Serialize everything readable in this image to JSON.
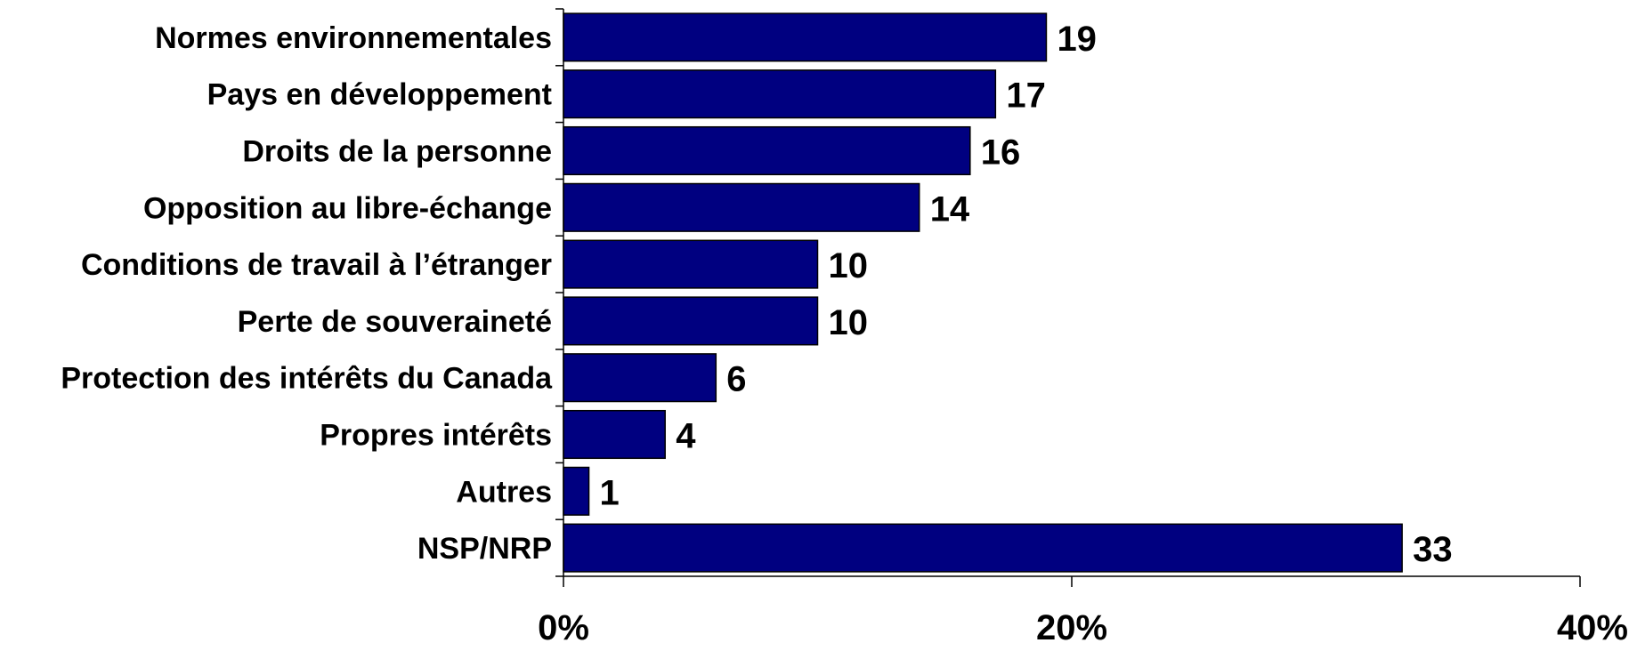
{
  "chart_data": {
    "type": "bar",
    "orientation": "horizontal",
    "categories": [
      "Normes environnementales",
      "Pays en développement",
      "Droits de la personne",
      "Opposition au libre-échange",
      "Conditions de travail à l’étranger",
      "Perte de souveraineté",
      "Protection des intérêts du Canada",
      "Propres intérêts",
      "Autres",
      "NSP/NRP"
    ],
    "values": [
      19,
      17,
      16,
      14,
      10,
      10,
      6,
      4,
      1,
      33
    ],
    "data_labels": [
      "19",
      "17",
      "16",
      "14",
      "10",
      "10",
      "6",
      "4",
      "1",
      "33"
    ],
    "xlim": [
      0,
      40
    ],
    "xticks": [
      0,
      20,
      40
    ],
    "xtick_labels": [
      "0%",
      "20%",
      "40%"
    ],
    "title": "",
    "xlabel": "",
    "ylabel": "",
    "grid": false,
    "bar_color": "#000080",
    "bar_edge_color": "#000000"
  }
}
